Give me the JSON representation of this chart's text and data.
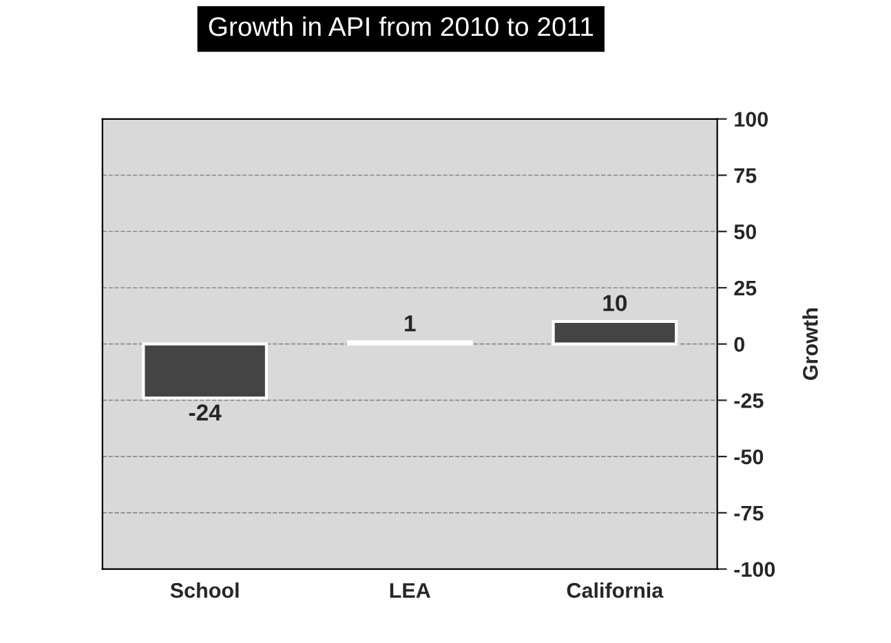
{
  "chart_data": {
    "type": "bar",
    "title": "Growth in API from 2010 to 2011",
    "ylabel": "Growth",
    "categories": [
      "School",
      "LEA",
      "California"
    ],
    "values": [
      -24,
      1,
      10
    ],
    "color": "#444444",
    "ylim": [
      -100,
      100
    ],
    "yticks": [
      -100,
      -75,
      -50,
      -25,
      0,
      25,
      50,
      75,
      100
    ],
    "grid": "y",
    "data_labels": true
  }
}
